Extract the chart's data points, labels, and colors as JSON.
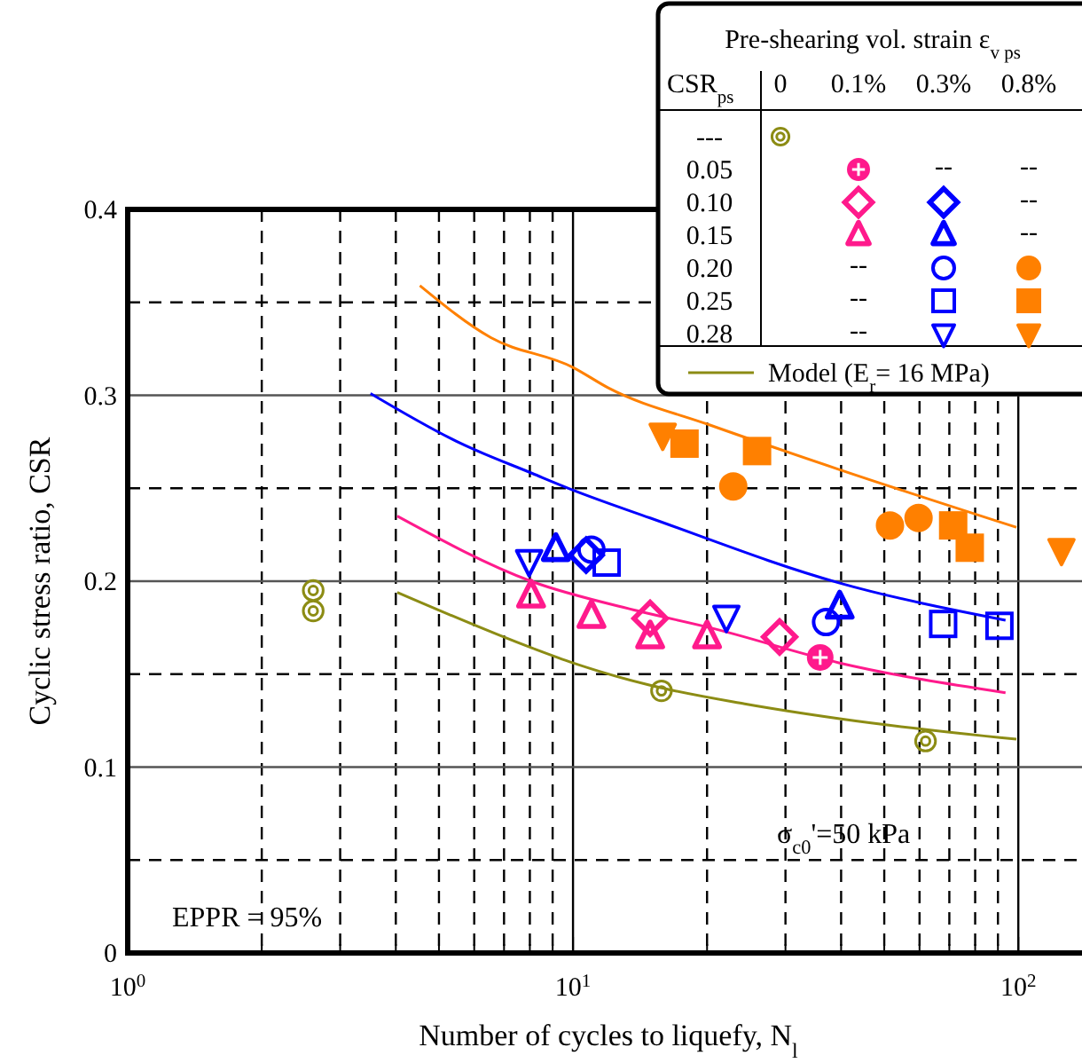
{
  "chart_data": {
    "type": "scatter",
    "xlabel": "Number of cycles to liquefy, N$_{l}$",
    "ylabel": "Cyclic stress ratio, CSR",
    "log": "x",
    "grid": true,
    "legend": "top right",
    "xlim": [
      1,
      139
    ],
    "ylim": [
      0,
      0.4
    ],
    "xticks": [
      {
        "value": 1,
        "label": "10$^{0}$"
      },
      {
        "value": 2,
        "label": null
      },
      {
        "value": 3,
        "label": null
      },
      {
        "value": 4,
        "label": null
      },
      {
        "value": 5,
        "label": null
      },
      {
        "value": 6,
        "label": null
      },
      {
        "value": 7,
        "label": null
      },
      {
        "value": 8,
        "label": null
      },
      {
        "value": 9,
        "label": null
      },
      {
        "value": 10,
        "label": "10$^{1}$"
      },
      {
        "value": 20,
        "label": null
      },
      {
        "value": 30,
        "label": null
      },
      {
        "value": 40,
        "label": null
      },
      {
        "value": 50,
        "label": null
      },
      {
        "value": 60,
        "label": null
      },
      {
        "value": 70,
        "label": null
      },
      {
        "value": 80,
        "label": null
      },
      {
        "value": 90,
        "label": null
      },
      {
        "value": 100,
        "label": "10$^{2}$"
      }
    ],
    "yticks": [
      0,
      {
        "value": 0.05,
        "label": null
      },
      0.1,
      {
        "value": 0.15,
        "label": null
      },
      0.2,
      {
        "value": 0.25,
        "label": null
      },
      0.3,
      {
        "value": 0.35,
        "label": null
      },
      0.4
    ],
    "series": [
      {
        "type": "line",
        "name": "Model (E$_{r}$= 16 MPa)",
        "color": "#8c8c14",
        "line_style": "solid",
        "x": [
          4.03,
          8.1,
          10,
          14.9,
          24.3,
          39.7,
          99
        ],
        "values": [
          0.194,
          0.164,
          0.156,
          0.144,
          0.134,
          0.126,
          0.115
        ]
      },
      {
        "type": "line",
        "color": "#ff1a8c",
        "line_style": "solid",
        "x": [
          4.03,
          8.05,
          14,
          20.3,
          39.7,
          93.6
        ],
        "values": [
          0.235,
          0.2,
          0.184,
          0.175,
          0.156,
          0.14
        ]
      },
      {
        "type": "line",
        "color": "#0000ff",
        "line_style": "solid",
        "x": [
          3.51,
          5.61,
          8.1,
          10,
          14.9,
          39.7,
          93.6
        ],
        "values": [
          0.301,
          0.274,
          0.258,
          0.249,
          0.234,
          0.199,
          0.179
        ]
      },
      {
        "type": "line",
        "color": "#ff8000",
        "line_style": "solid",
        "x": [
          4.53,
          6.54,
          10,
          12,
          20.3,
          39.7,
          99
        ],
        "values": [
          0.359,
          0.331,
          0.315,
          0.304,
          0.284,
          0.26,
          0.229
        ]
      },
      {
        "color": "#8c8c14",
        "x": [
          2.61,
          2.61,
          15.8,
          61.9
        ],
        "values": [
          0.195,
          0.184,
          0.141,
          0.114
        ]
      },
      {
        "color": "#ff1a8c",
        "marker": "circle",
        "x": [
          35.9
        ],
        "values": [
          0.159
        ]
      },
      {
        "color": "#ff1a8c",
        "marker": "diamond",
        "x": [
          14.9,
          29.1
        ],
        "values": [
          0.18,
          0.17
        ]
      },
      {
        "color": "#ff1a8c",
        "marker": "triangle",
        "x": [
          8.05,
          11,
          14.9,
          20
        ],
        "values": [
          0.192,
          0.181,
          0.17,
          0.17
        ]
      },
      {
        "color": "#0000ff",
        "marker": "diamond",
        "x": [
          10.7
        ],
        "values": [
          0.214
        ]
      },
      {
        "color": "#0000ff",
        "marker": "triangle",
        "x": [
          9.15,
          39.7
        ],
        "values": [
          0.217,
          0.186
        ]
      },
      {
        "color": "#0000ff",
        "marker": "circle",
        "x": [
          11,
          37
        ],
        "values": [
          0.217,
          0.178
        ]
      },
      {
        "color": "#0000ff",
        "marker": "square",
        "x": [
          11.9,
          67.8,
          90.7
        ],
        "values": [
          0.21,
          0.177,
          0.176
        ]
      },
      {
        "color": "#0000ff",
        "marker": "triangle",
        "x": [
          7.97,
          22.1
        ],
        "values": [
          0.211,
          0.181
        ]
      },
      {
        "color": "#ff8000",
        "marker": "circle",
        "x": [
          22.9,
          51.5,
          59.7
        ],
        "values": [
          0.251,
          0.23,
          0.234
        ]
      },
      {
        "color": "#ff8000",
        "marker": "square",
        "x": [
          17.8,
          25.9,
          71.4,
          77.8
        ],
        "values": [
          0.274,
          0.27,
          0.23,
          0.218
        ]
      },
      {
        "color": "#ff8000",
        "marker": "triangle",
        "x": [
          15.9,
          125
        ],
        "values": [
          0.279,
          0.217
        ]
      }
    ],
    "annotations": [
      "Pre-shearing vol. strain ε$_{v ps}$",
      "CSR$_{ps}$",
      "0",
      "0.1%",
      "0.3%",
      "0.8%",
      "---",
      "0.05",
      "0.10",
      "0.15",
      "0.20",
      "0.25",
      "0.28",
      "--",
      "--",
      "--",
      "--",
      "--",
      "--",
      "--",
      "EPPR = 95%",
      "σ$_{c0}$'=50 kPa"
    ]
  }
}
